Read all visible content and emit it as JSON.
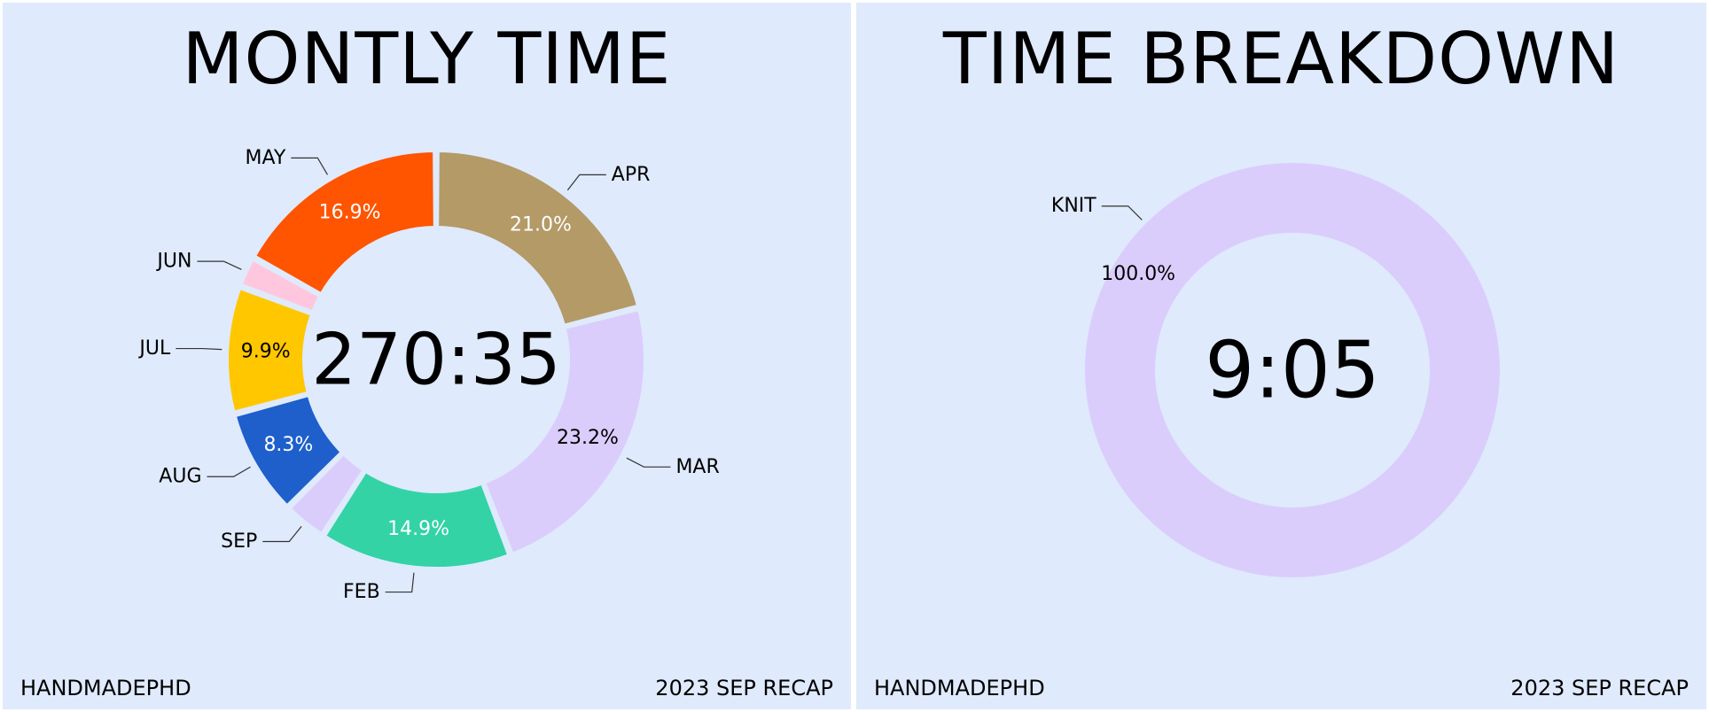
{
  "footer": {
    "left": "HANDMADEPHD",
    "right": "2023 SEP RECAP"
  },
  "chart_data": [
    {
      "type": "pie",
      "title": "MONTLY TIME",
      "center_label": "270:35",
      "slices": [
        {
          "label": "APR",
          "value": 21.0,
          "pct_label": "21.0%",
          "color": "#b39a67",
          "pct_color": "#ffffff"
        },
        {
          "label": "MAR",
          "value": 23.2,
          "pct_label": "23.2%",
          "color": "#dacdfc",
          "pct_color": "#000000"
        },
        {
          "label": "FEB",
          "value": 14.9,
          "pct_label": "14.9%",
          "color": "#33d3a6",
          "pct_color": "#ffffff"
        },
        {
          "label": "SEP",
          "value": 3.4,
          "pct_label": "",
          "color": "#dacdfc",
          "pct_color": "#000000"
        },
        {
          "label": "AUG",
          "value": 8.3,
          "pct_label": "8.3%",
          "color": "#1e5fcc",
          "pct_color": "#ffffff"
        },
        {
          "label": "JUL",
          "value": 9.9,
          "pct_label": "9.9%",
          "color": "#ffc700",
          "pct_color": "#000000"
        },
        {
          "label": "JUN",
          "value": 2.4,
          "pct_label": "",
          "color": "#ffc7dd",
          "pct_color": "#000000"
        },
        {
          "label": "MAY",
          "value": 16.9,
          "pct_label": "16.9%",
          "color": "#ff5400",
          "pct_color": "#ffffff"
        }
      ]
    },
    {
      "type": "pie",
      "title": "TIME BREAKDOWN",
      "center_label": "9:05",
      "slices": [
        {
          "label": "KNIT",
          "value": 100.0,
          "pct_label": "100.0%",
          "color": "#dacdfc",
          "pct_color": "#000000"
        }
      ]
    }
  ]
}
